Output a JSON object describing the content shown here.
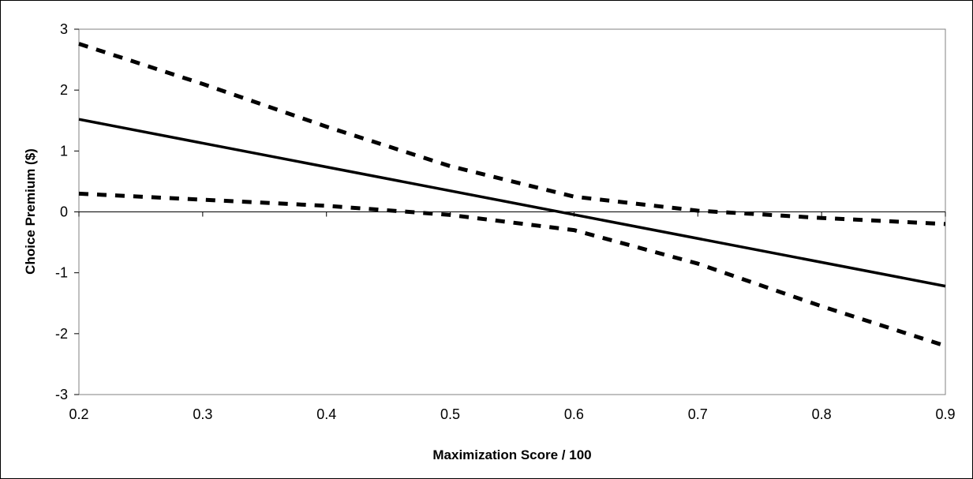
{
  "chart_data": {
    "type": "line",
    "title": "",
    "xlabel": "Maximization Score / 100",
    "ylabel": "Choice Premium ($)",
    "xlim": [
      0.2,
      0.9
    ],
    "ylim": [
      -3,
      3
    ],
    "x_ticks": [
      0.2,
      0.3,
      0.4,
      0.5,
      0.6,
      0.7,
      0.8,
      0.9
    ],
    "x_tick_labels": [
      "0.2",
      "0.3",
      "0.4",
      "0.5",
      "0.6",
      "0.7",
      "0.8",
      "0.9"
    ],
    "y_ticks": [
      -3,
      -2,
      -1,
      0,
      1,
      2,
      3
    ],
    "y_tick_labels": [
      "-3",
      "-2",
      "-1",
      "0",
      "1",
      "2",
      "3"
    ],
    "grid": false,
    "legend": "none",
    "series": [
      {
        "style": "solid",
        "color": "#000000",
        "x": [
          0.2,
          0.9
        ],
        "y": [
          1.52,
          -1.22
        ]
      },
      {
        "style": "dashed",
        "color": "#000000",
        "x": [
          0.2,
          0.3,
          0.4,
          0.5,
          0.6,
          0.7,
          0.8,
          0.9
        ],
        "y": [
          2.76,
          2.1,
          1.4,
          0.75,
          0.25,
          0.02,
          -0.1,
          -0.2
        ]
      },
      {
        "style": "dashed",
        "color": "#000000",
        "x": [
          0.2,
          0.3,
          0.4,
          0.5,
          0.6,
          0.7,
          0.8,
          0.9
        ],
        "y": [
          0.3,
          0.2,
          0.1,
          -0.05,
          -0.3,
          -0.85,
          -1.55,
          -2.2
        ]
      }
    ]
  }
}
